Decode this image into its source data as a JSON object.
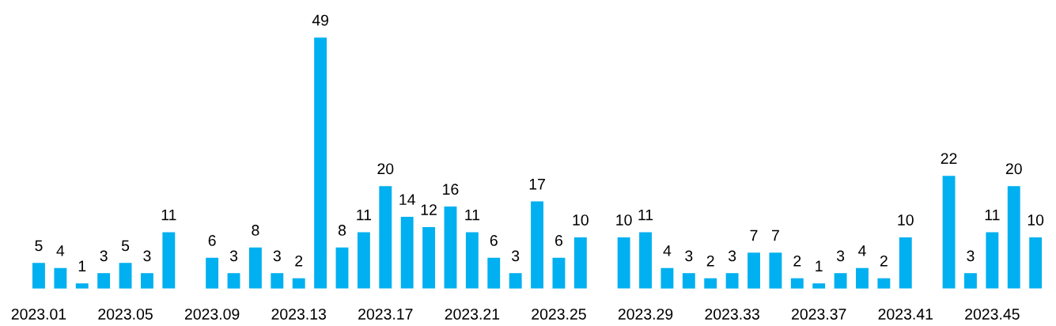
{
  "chart_data": {
    "type": "bar",
    "categories": [
      "2023.01",
      null,
      null,
      null,
      "2023.05",
      null,
      null,
      null,
      "2023.09",
      null,
      null,
      null,
      "2023.13",
      null,
      null,
      null,
      "2023.17",
      null,
      null,
      null,
      "2023.21",
      null,
      null,
      null,
      "2023.25",
      null,
      null,
      null,
      "2023.29",
      null,
      null,
      null,
      "2023.33",
      null,
      null,
      null,
      "2023.37",
      null,
      null,
      null,
      "2023.41",
      null,
      null,
      null,
      "2023.45",
      null,
      null
    ],
    "values": [
      5,
      4,
      1,
      3,
      5,
      3,
      11,
      null,
      6,
      3,
      8,
      3,
      2,
      49,
      8,
      11,
      20,
      14,
      12,
      16,
      11,
      6,
      3,
      17,
      6,
      10,
      null,
      10,
      11,
      4,
      3,
      2,
      3,
      7,
      7,
      2,
      1,
      3,
      4,
      2,
      10,
      null,
      22,
      3,
      11,
      20,
      10
    ],
    "color": "#00b0f0",
    "data_labels": true,
    "grid": false,
    "legend": false,
    "tick_labels": "x"
  }
}
